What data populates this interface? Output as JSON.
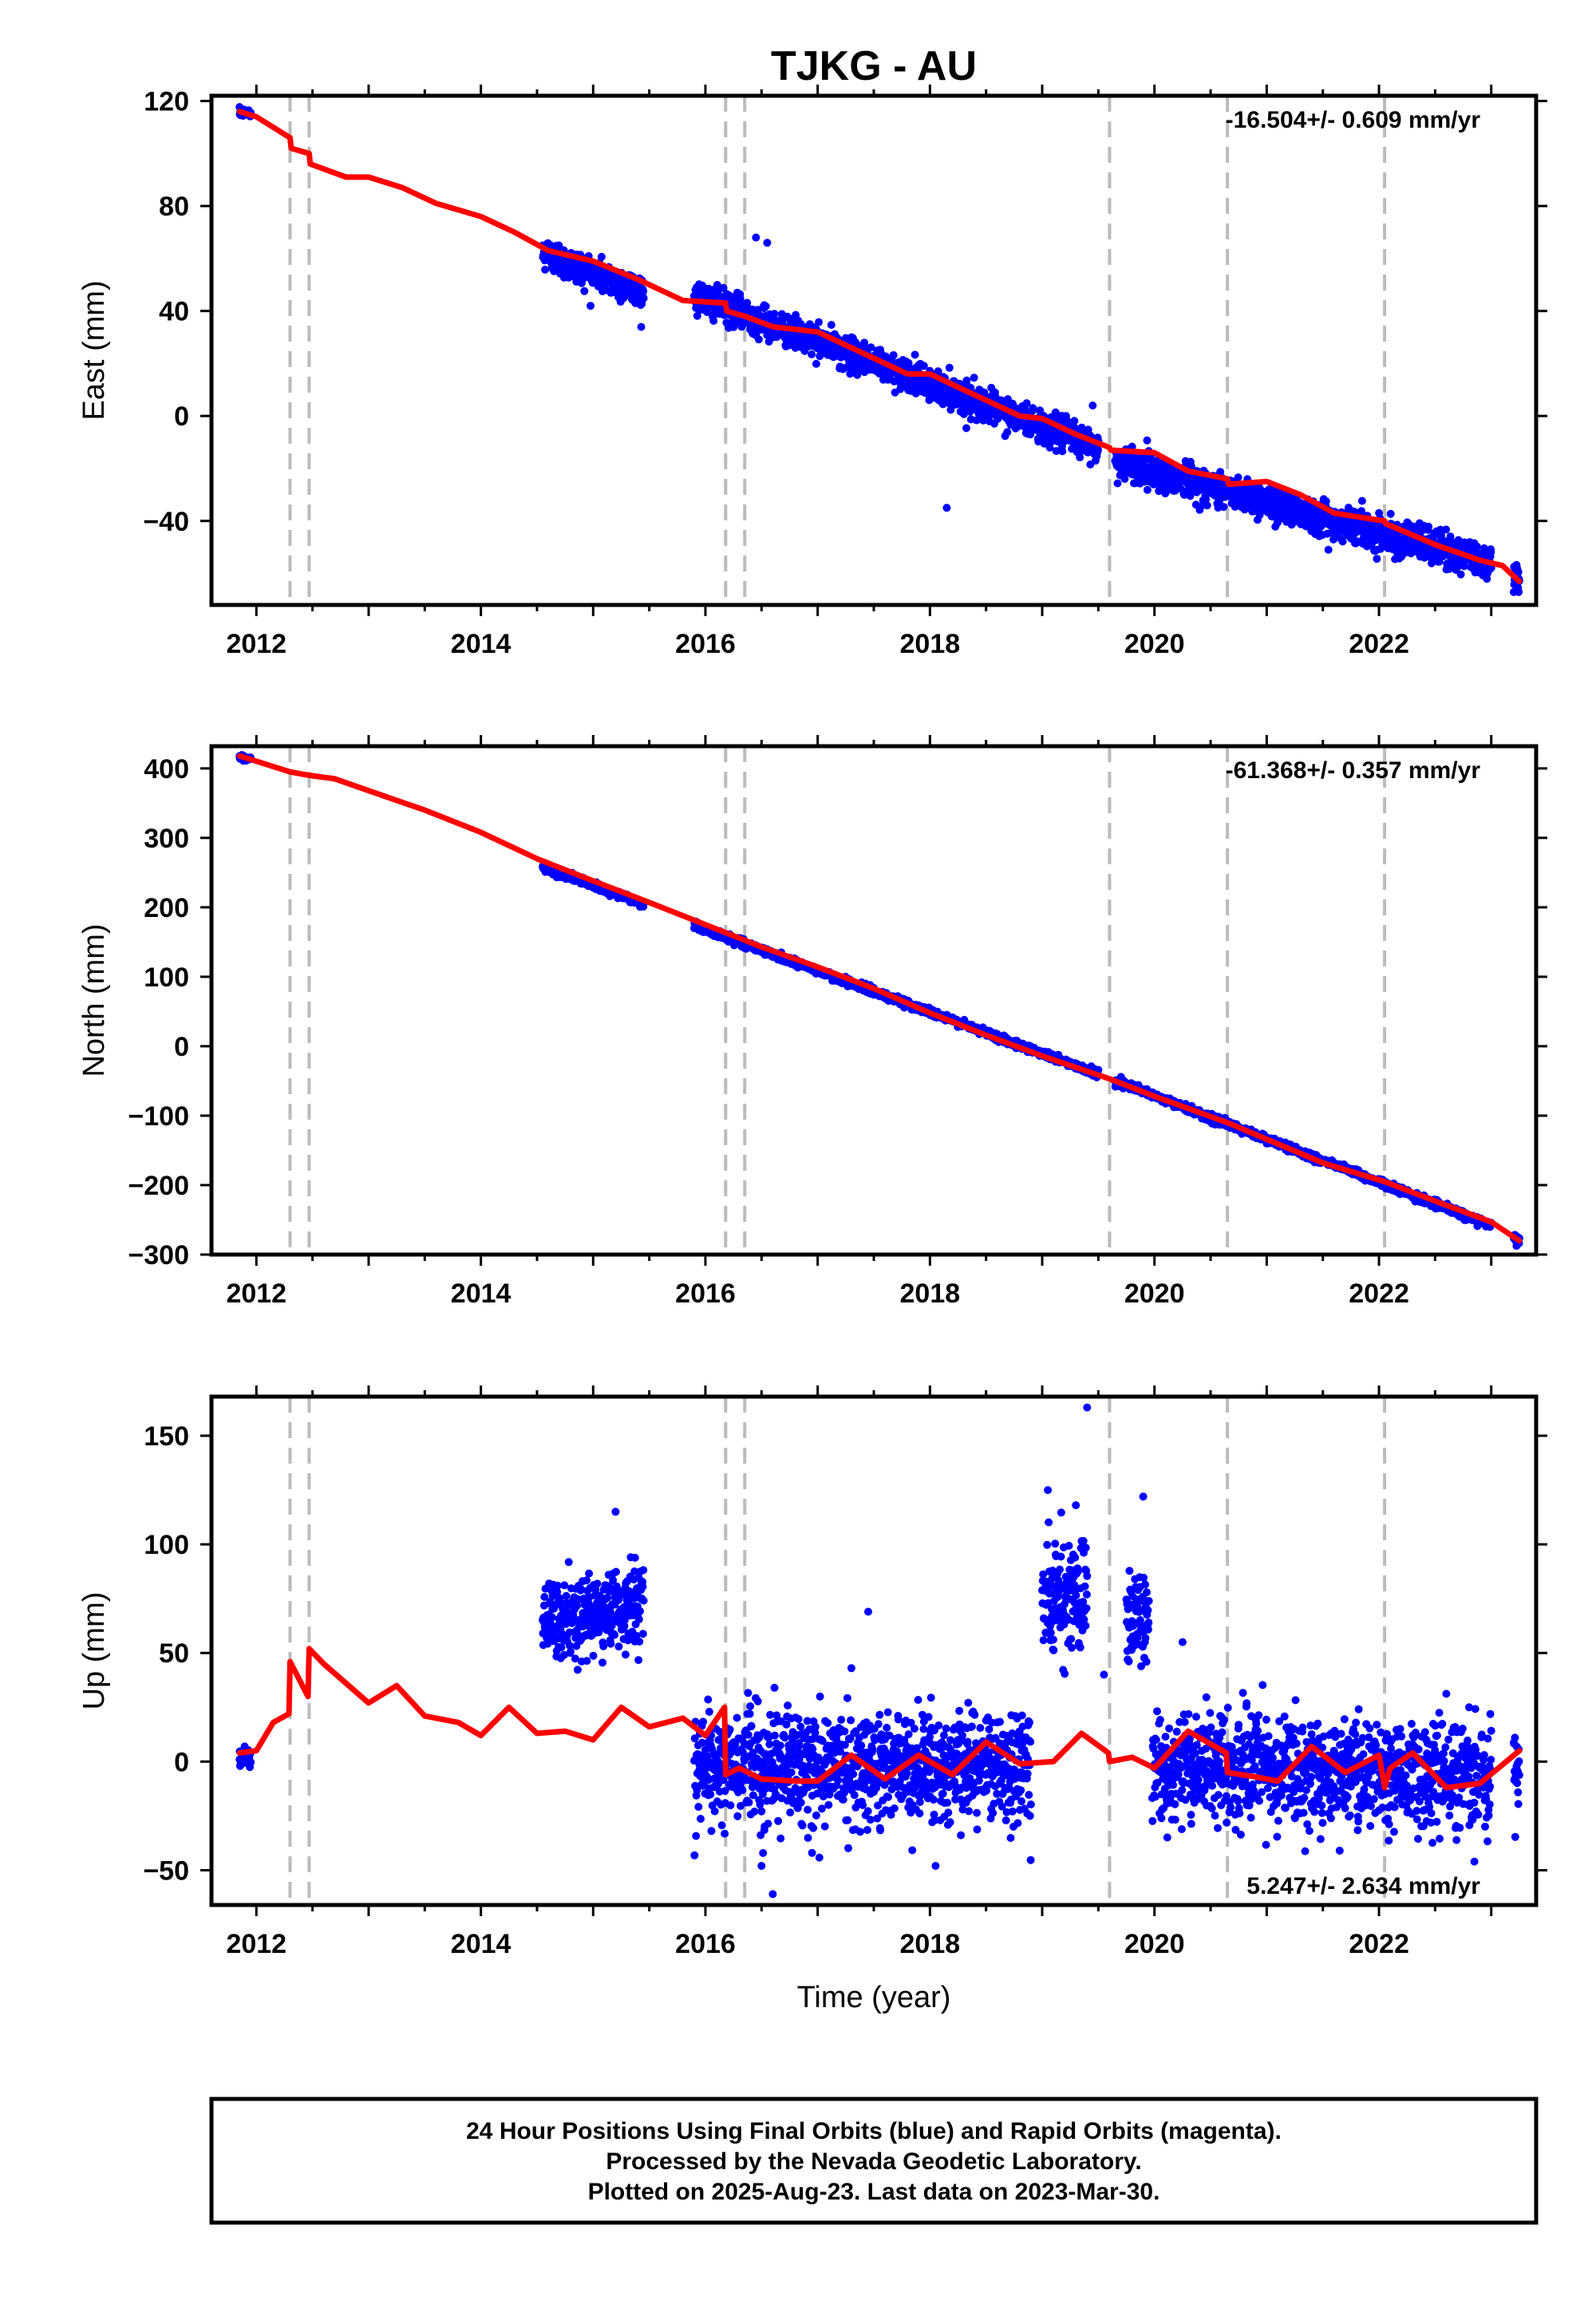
{
  "chart_data": {
    "type": "scatter",
    "title": "TJKG - AU",
    "xlabel": "Time (year)",
    "xlim": [
      2011.6,
      2023.4
    ],
    "xticks": [
      2012,
      2014,
      2016,
      2018,
      2020,
      2022
    ],
    "xtick_labels": [
      "2012",
      "2014",
      "2016",
      "2018",
      "2020",
      "2022"
    ],
    "event_lines": [
      2012.3,
      2012.47,
      2016.18,
      2016.35,
      2019.6,
      2020.65,
      2022.05
    ],
    "grid": false,
    "colors": {
      "data": "#0000ff",
      "model": "#ff0000",
      "event_line": "#bbbbbb"
    },
    "panels": [
      {
        "name": "East",
        "ylabel": "East (mm)",
        "ylim": [
          -72,
          122
        ],
        "yticks": [
          -40,
          0,
          40,
          80,
          120
        ],
        "ytick_labels": [
          "−40",
          "0",
          "40",
          "80",
          "120"
        ],
        "rate": "-16.504+/- 0.609 mm/yr",
        "rate_position": "top-right",
        "model": [
          [
            2011.85,
            116
          ],
          [
            2012.0,
            114
          ],
          [
            2012.3,
            106
          ],
          [
            2012.31,
            102
          ],
          [
            2012.47,
            100
          ],
          [
            2012.48,
            96
          ],
          [
            2012.8,
            91
          ],
          [
            2013.0,
            91
          ],
          [
            2013.3,
            87
          ],
          [
            2013.6,
            81
          ],
          [
            2014.0,
            76
          ],
          [
            2014.3,
            70
          ],
          [
            2014.6,
            63
          ],
          [
            2015.0,
            59
          ],
          [
            2015.4,
            52
          ],
          [
            2015.8,
            44
          ],
          [
            2016.18,
            43
          ],
          [
            2016.19,
            40
          ],
          [
            2016.35,
            38
          ],
          [
            2016.6,
            34
          ],
          [
            2017.0,
            32
          ],
          [
            2017.4,
            24
          ],
          [
            2017.8,
            16
          ],
          [
            2018.0,
            16
          ],
          [
            2018.4,
            8
          ],
          [
            2018.8,
            0
          ],
          [
            2019.0,
            -1
          ],
          [
            2019.3,
            -7
          ],
          [
            2019.6,
            -12
          ],
          [
            2019.61,
            -13
          ],
          [
            2020.0,
            -14
          ],
          [
            2020.3,
            -21
          ],
          [
            2020.65,
            -24
          ],
          [
            2020.66,
            -26
          ],
          [
            2021.0,
            -25
          ],
          [
            2021.3,
            -30
          ],
          [
            2021.6,
            -37
          ],
          [
            2022.05,
            -40
          ],
          [
            2022.06,
            -41
          ],
          [
            2022.5,
            -49
          ],
          [
            2022.9,
            -55
          ],
          [
            2023.1,
            -57
          ],
          [
            2023.25,
            -63
          ]
        ],
        "scatter_segments": [
          {
            "x": [
              2011.85,
              2011.95
            ],
            "trend": [
              115.5,
              115.5
            ],
            "sd": 0.8
          },
          {
            "x": [
              2014.55,
              2015.45
            ],
            "trend": [
              62,
              47
            ],
            "sd": 3.2
          },
          {
            "x": [
              2015.9,
              2019.5
            ],
            "trend": [
              46,
              -12
            ],
            "sd": 3.0
          },
          {
            "x": [
              2019.65,
              2023.0
            ],
            "trend": [
              -17,
              -56
            ],
            "sd": 3.2
          },
          {
            "x": [
              2023.2,
              2023.25
            ],
            "trend": [
              -60,
              -62
            ],
            "sd": 4.0
          }
        ],
        "outliers": [
          [
            2016.45,
            68
          ],
          [
            2016.55,
            66
          ],
          [
            2018.15,
            -35
          ],
          [
            2016.2,
            45
          ],
          [
            2019.45,
            4
          ],
          [
            2021.55,
            -51
          ]
        ]
      },
      {
        "name": "North",
        "ylabel": "North (mm)",
        "ylim": [
          -300,
          432
        ],
        "yticks": [
          -300,
          -200,
          -100,
          0,
          100,
          200,
          300,
          400
        ],
        "ytick_labels": [
          "−300",
          "−200",
          "−100",
          "0",
          "100",
          "200",
          "300",
          "400"
        ],
        "rate": "-61.368+/- 0.357 mm/yr",
        "rate_position": "top-right",
        "model": [
          [
            2011.85,
            418
          ],
          [
            2012.3,
            395
          ],
          [
            2012.47,
            390
          ],
          [
            2012.7,
            385
          ],
          [
            2013.0,
            368
          ],
          [
            2013.5,
            340
          ],
          [
            2014.0,
            308
          ],
          [
            2014.5,
            270
          ],
          [
            2015.0,
            238
          ],
          [
            2015.5,
            207
          ],
          [
            2016.0,
            175
          ],
          [
            2016.5,
            143
          ],
          [
            2017.0,
            114
          ],
          [
            2017.5,
            83
          ],
          [
            2018.0,
            48
          ],
          [
            2018.5,
            16
          ],
          [
            2019.0,
            -14
          ],
          [
            2019.6,
            -47
          ],
          [
            2020.0,
            -72
          ],
          [
            2020.65,
            -110
          ],
          [
            2021.0,
            -134
          ],
          [
            2021.5,
            -168
          ],
          [
            2022.05,
            -195
          ],
          [
            2022.5,
            -223
          ],
          [
            2023.0,
            -253
          ],
          [
            2023.25,
            -280
          ]
        ],
        "scatter_segments": [
          {
            "x": [
              2011.85,
              2011.95
            ],
            "trend": [
              416,
              414
            ],
            "sd": 1.5
          },
          {
            "x": [
              2014.55,
              2015.45
            ],
            "trend": [
              258,
              205
            ],
            "sd": 2.5
          },
          {
            "x": [
              2015.9,
              2019.5
            ],
            "trend": [
              174,
              -40
            ],
            "sd": 2.5
          },
          {
            "x": [
              2019.65,
              2023.0
            ],
            "trend": [
              -50,
              -258
            ],
            "sd": 2.5
          },
          {
            "x": [
              2023.2,
              2023.25
            ],
            "trend": [
              -275,
              -282
            ],
            "sd": 3.0
          }
        ],
        "outliers": []
      },
      {
        "name": "Up",
        "ylabel": "Up (mm)",
        "ylim": [
          -66,
          168
        ],
        "yticks": [
          -50,
          0,
          50,
          100,
          150
        ],
        "ytick_labels": [
          "−50",
          "0",
          "50",
          "100",
          "150"
        ],
        "rate": "5.247+/- 2.634 mm/yr",
        "rate_position": "bottom-right",
        "model": [
          [
            2011.85,
            4
          ],
          [
            2012.0,
            5
          ],
          [
            2012.15,
            18
          ],
          [
            2012.29,
            22
          ],
          [
            2012.3,
            46
          ],
          [
            2012.46,
            30
          ],
          [
            2012.47,
            52
          ],
          [
            2012.6,
            45
          ],
          [
            2012.8,
            36
          ],
          [
            2013.0,
            27
          ],
          [
            2013.25,
            35
          ],
          [
            2013.5,
            21
          ],
          [
            2013.8,
            18
          ],
          [
            2014.0,
            12
          ],
          [
            2014.25,
            25
          ],
          [
            2014.5,
            13
          ],
          [
            2014.75,
            14
          ],
          [
            2015.0,
            10
          ],
          [
            2015.25,
            25
          ],
          [
            2015.5,
            16
          ],
          [
            2015.8,
            20
          ],
          [
            2016.0,
            12
          ],
          [
            2016.17,
            25
          ],
          [
            2016.18,
            -6
          ],
          [
            2016.3,
            -3
          ],
          [
            2016.5,
            -8
          ],
          [
            2016.8,
            -9
          ],
          [
            2017.0,
            -9
          ],
          [
            2017.3,
            3
          ],
          [
            2017.6,
            -8
          ],
          [
            2017.9,
            3
          ],
          [
            2018.2,
            -6
          ],
          [
            2018.5,
            9
          ],
          [
            2018.8,
            -1
          ],
          [
            2019.1,
            0
          ],
          [
            2019.35,
            13
          ],
          [
            2019.59,
            4
          ],
          [
            2019.6,
            0
          ],
          [
            2019.8,
            2
          ],
          [
            2020.0,
            -3
          ],
          [
            2020.3,
            14
          ],
          [
            2020.64,
            4
          ],
          [
            2020.65,
            -5
          ],
          [
            2020.9,
            -7
          ],
          [
            2021.1,
            -9
          ],
          [
            2021.4,
            7
          ],
          [
            2021.7,
            -5
          ],
          [
            2022.0,
            3
          ],
          [
            2022.05,
            -12
          ],
          [
            2022.1,
            -3
          ],
          [
            2022.3,
            4
          ],
          [
            2022.6,
            -12
          ],
          [
            2022.9,
            -10
          ],
          [
            2023.25,
            5
          ]
        ],
        "scatter_segments": [
          {
            "x": [
              2011.85,
              2011.95
            ],
            "trend": [
              2,
              2
            ],
            "sd": 2.0
          },
          {
            "x": [
              2014.55,
              2015.45
            ],
            "trend": [
              62,
              74
            ],
            "sd": 9.0
          },
          {
            "x": [
              2015.9,
              2018.9
            ],
            "trend": [
              -2,
              -2
            ],
            "sd": 12.0
          },
          {
            "x": [
              2019.0,
              2019.4
            ],
            "trend": [
              75,
              75
            ],
            "sd": 13.0
          },
          {
            "x": [
              2019.75,
              2019.95
            ],
            "trend": [
              65,
              65
            ],
            "sd": 11.0
          },
          {
            "x": [
              2019.98,
              2023.0
            ],
            "trend": [
              -3,
              -6
            ],
            "sd": 12.0
          },
          {
            "x": [
              2023.2,
              2023.25
            ],
            "trend": [
              -5,
              -5
            ],
            "sd": 10.0
          }
        ],
        "outliers": [
          [
            2019.4,
            163
          ],
          [
            2019.05,
            125
          ],
          [
            2019.9,
            122
          ],
          [
            2019.3,
            118
          ],
          [
            2015.2,
            115
          ],
          [
            2017.45,
            69
          ],
          [
            2017.3,
            43
          ],
          [
            2016.5,
            -48
          ],
          [
            2016.6,
            -61
          ],
          [
            2018.05,
            -48
          ],
          [
            2016.95,
            -42
          ],
          [
            2022.85,
            -46
          ],
          [
            2021.65,
            -41
          ],
          [
            2019.55,
            40
          ],
          [
            2020.25,
            55
          ]
        ]
      }
    ]
  },
  "footer": {
    "line1": "24 Hour Positions Using Final Orbits (blue) and Rapid Orbits (magenta).",
    "line2": "Processed by the Nevada Geodetic Laboratory.",
    "line3": "Plotted on 2025-Aug-23. Last data on 2023-Mar-30."
  }
}
